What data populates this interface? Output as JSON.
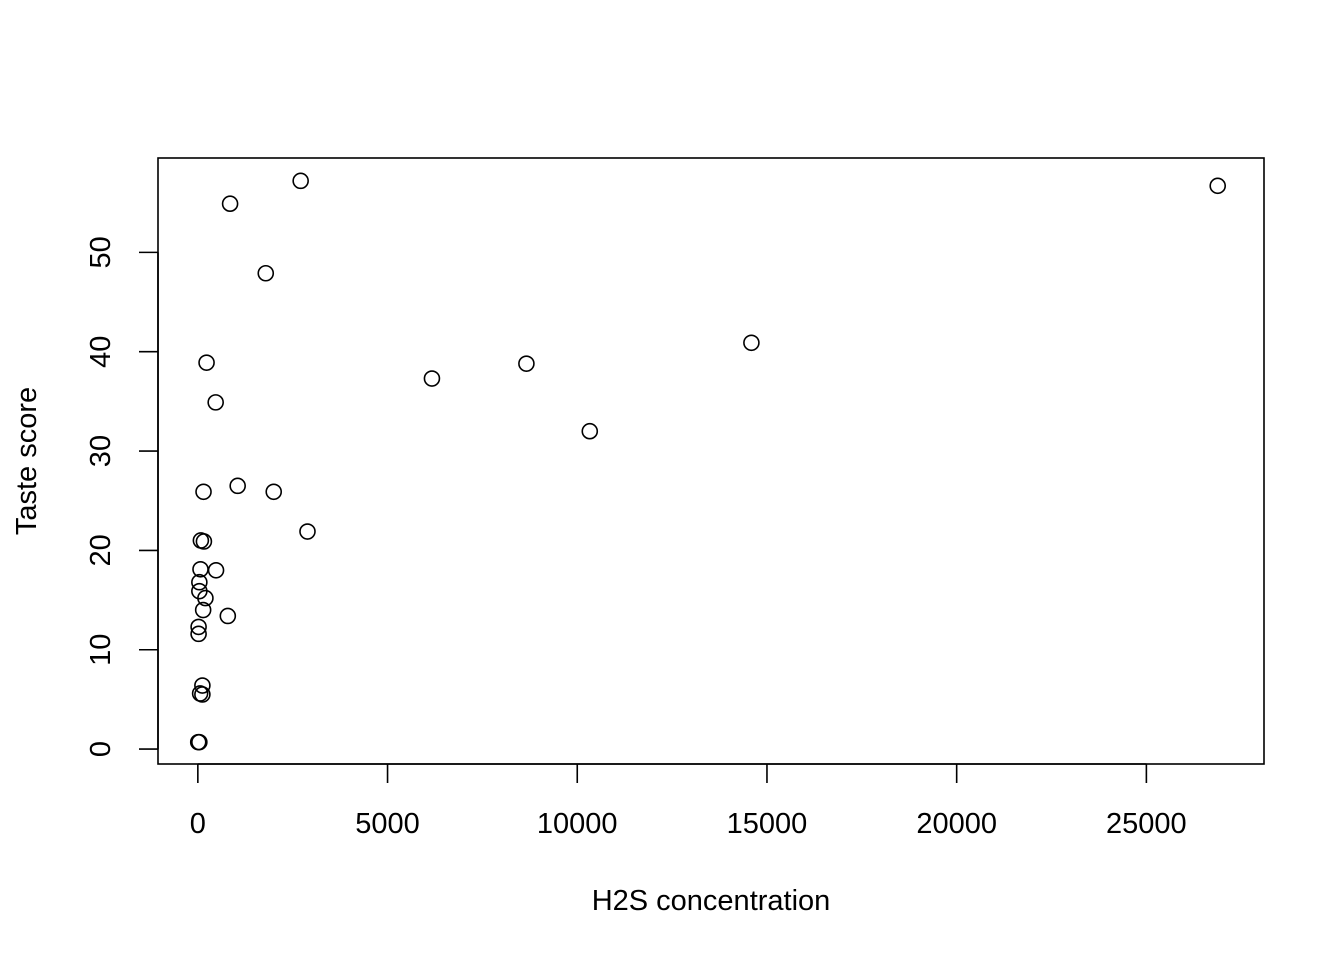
{
  "chart_data": {
    "type": "scatter",
    "title": "",
    "xlabel": "H2S concentration",
    "ylabel": "Taste score",
    "xlim": [
      -1050,
      28100
    ],
    "ylim": [
      -1.5,
      59.5
    ],
    "xticks": [
      0,
      5000,
      10000,
      15000,
      20000,
      25000
    ],
    "xtick_labels": [
      "0",
      "5000",
      "10000",
      "15000",
      "20000",
      "25000"
    ],
    "yticks": [
      0,
      10,
      20,
      30,
      40,
      50
    ],
    "ytick_labels": [
      "0",
      "10",
      "20",
      "30",
      "40",
      "50"
    ],
    "grid": false,
    "legend": "none",
    "marker": "open-circle",
    "series": [
      {
        "points": [
          {
            "x": 2710,
            "y": 57.2
          },
          {
            "x": 26880,
            "y": 56.7
          },
          {
            "x": 850,
            "y": 54.9
          },
          {
            "x": 1790,
            "y": 47.9
          },
          {
            "x": 14590,
            "y": 40.9
          },
          {
            "x": 230,
            "y": 38.9
          },
          {
            "x": 8660,
            "y": 38.8
          },
          {
            "x": 6170,
            "y": 37.3
          },
          {
            "x": 470,
            "y": 34.9
          },
          {
            "x": 10330,
            "y": 32.0
          },
          {
            "x": 1050,
            "y": 26.5
          },
          {
            "x": 150,
            "y": 25.9
          },
          {
            "x": 2000,
            "y": 25.9
          },
          {
            "x": 2890,
            "y": 21.9
          },
          {
            "x": 80,
            "y": 21.0
          },
          {
            "x": 160,
            "y": 20.9
          },
          {
            "x": 70,
            "y": 18.1
          },
          {
            "x": 480,
            "y": 18.0
          },
          {
            "x": 40,
            "y": 16.8
          },
          {
            "x": 40,
            "y": 15.9
          },
          {
            "x": 200,
            "y": 15.2
          },
          {
            "x": 140,
            "y": 14.0
          },
          {
            "x": 790,
            "y": 13.4
          },
          {
            "x": 20,
            "y": 12.3
          },
          {
            "x": 20,
            "y": 11.6
          },
          {
            "x": 120,
            "y": 6.4
          },
          {
            "x": 60,
            "y": 5.6
          },
          {
            "x": 120,
            "y": 5.5
          },
          {
            "x": 10,
            "y": 0.7
          },
          {
            "x": 40,
            "y": 0.7
          }
        ]
      }
    ]
  }
}
